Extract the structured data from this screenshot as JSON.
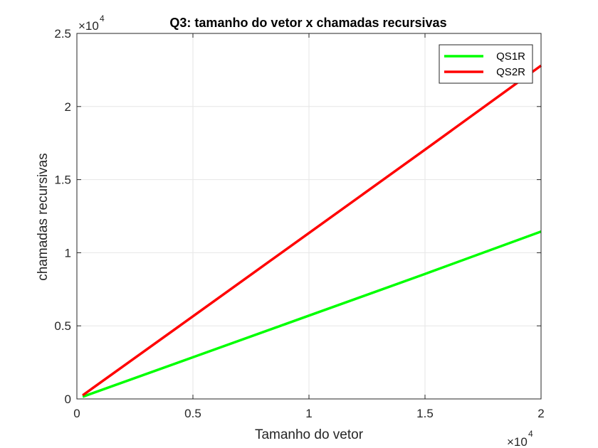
{
  "chart_data": {
    "type": "line",
    "title": "Q3: tamanho do vetor x chamadas recursivas",
    "xlabel": "Tamanho do vetor",
    "ylabel": "chamadas recursivas",
    "xlim": [
      0,
      20000
    ],
    "ylim": [
      0,
      25000
    ],
    "x_multiplier_label": "×10",
    "x_multiplier_exp": "4",
    "y_multiplier_label": "×10",
    "y_multiplier_exp": "4",
    "x_ticks": [
      {
        "value": 0,
        "label": "0"
      },
      {
        "value": 5000,
        "label": "0.5"
      },
      {
        "value": 10000,
        "label": "1"
      },
      {
        "value": 15000,
        "label": "1.5"
      },
      {
        "value": 20000,
        "label": "2"
      }
    ],
    "y_ticks": [
      {
        "value": 0,
        "label": "0"
      },
      {
        "value": 5000,
        "label": "0.5"
      },
      {
        "value": 10000,
        "label": "1"
      },
      {
        "value": 15000,
        "label": "1.5"
      },
      {
        "value": 20000,
        "label": "2"
      },
      {
        "value": 25000,
        "label": "2.5"
      }
    ],
    "grid": true,
    "legend_position": "top-right",
    "series": [
      {
        "name": "QS1R",
        "color": "#00ff00",
        "x": [
          250,
          5000,
          10000,
          15000,
          20000
        ],
        "y": [
          150,
          2850,
          5700,
          8550,
          11450
        ]
      },
      {
        "name": "QS2R",
        "color": "#ff0000",
        "x": [
          250,
          5000,
          10000,
          15000,
          20000
        ],
        "y": [
          250,
          5650,
          11350,
          17050,
          22800
        ]
      }
    ]
  }
}
